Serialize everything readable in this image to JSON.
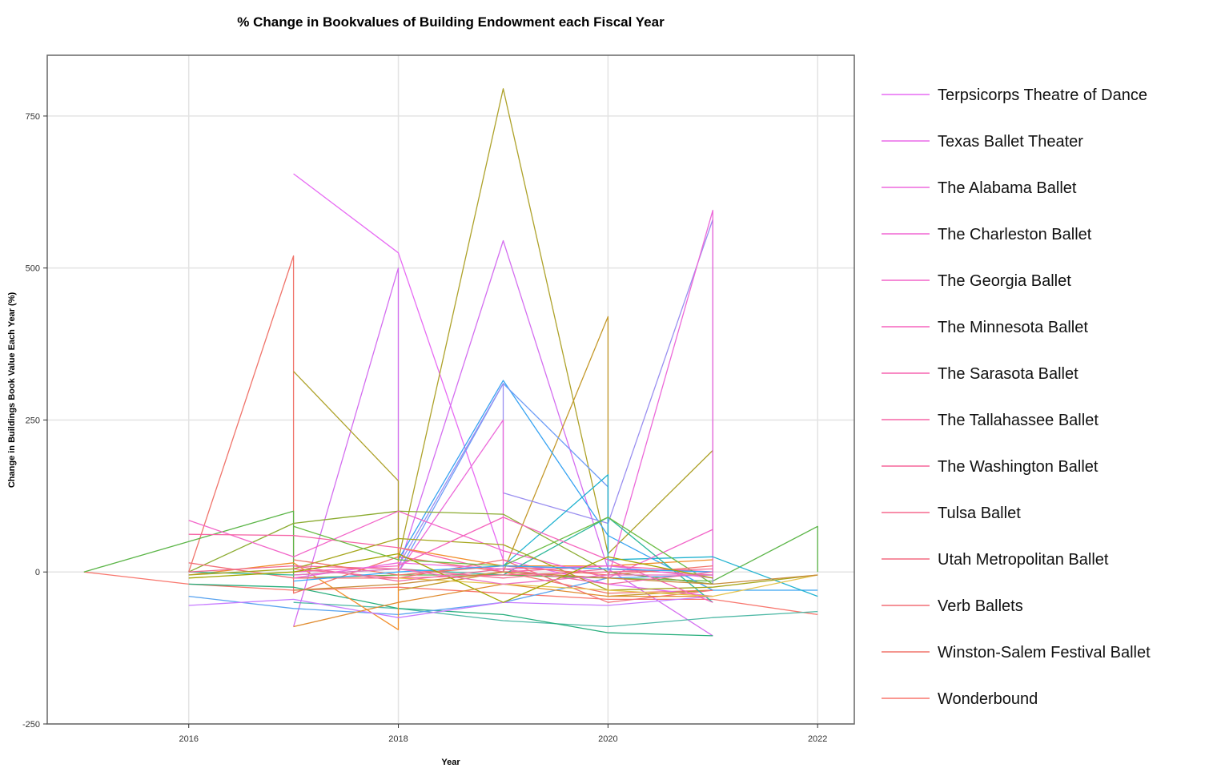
{
  "chart_data": {
    "type": "line",
    "title": "% Change in Bookvalues of Building Endowment each Fiscal Year",
    "xlabel": "Year",
    "ylabel": "Change in Buildings Book Value Each Year (%)",
    "xlim": [
      2014.65,
      2022.35
    ],
    "ylim": [
      -250,
      850
    ],
    "x_ticks": [
      2016,
      2018,
      2020,
      2022
    ],
    "y_ticks": [
      -250,
      0,
      250,
      500,
      750
    ],
    "grid": true,
    "legend_position": "right",
    "legend": [
      {
        "name": "Terpsicorps Theatre of Dance",
        "color": "#e76bf3"
      },
      {
        "name": "Texas Ballet Theater",
        "color": "#ea6ae8"
      },
      {
        "name": "The Alabama Ballet",
        "color": "#ed68de"
      },
      {
        "name": "The Charleston Ballet",
        "color": "#f066d3"
      },
      {
        "name": "The Georgia Ballet",
        "color": "#f264c8"
      },
      {
        "name": "The Minnesota Ballet",
        "color": "#f564bd"
      },
      {
        "name": "The Sarasota Ballet",
        "color": "#f564b1"
      },
      {
        "name": "The Tallahassee Ballet",
        "color": "#f665a6"
      },
      {
        "name": "The Washington Ballet",
        "color": "#f6669a"
      },
      {
        "name": "Tulsa Ballet",
        "color": "#f5698e"
      },
      {
        "name": "Utah Metropolitan Ballet",
        "color": "#f46c82"
      },
      {
        "name": "Verb Ballets",
        "color": "#f26f76"
      },
      {
        "name": "Winston-Salem Festival Ballet",
        "color": "#f0736a"
      },
      {
        "name": "Wonderbound",
        "color": "#f8766d"
      }
    ],
    "series": [
      {
        "color": "#f8766d",
        "points": [
          [
            2015,
            0
          ],
          [
            2016,
            -20
          ],
          [
            2017,
            -30
          ],
          [
            2018,
            -25
          ],
          [
            2019,
            -35
          ],
          [
            2020,
            -45
          ],
          [
            2021,
            -45
          ],
          [
            2022,
            -70
          ]
        ]
      },
      {
        "color": "#f0736a",
        "points": [
          [
            2016,
            0
          ],
          [
            2017,
            520
          ],
          [
            2017,
            -35
          ],
          [
            2018,
            25
          ],
          [
            2019,
            0
          ],
          [
            2020,
            -35
          ],
          [
            2021,
            -30
          ]
        ]
      },
      {
        "color": "#5bb547",
        "points": [
          [
            2015,
            0
          ],
          [
            2016,
            50
          ],
          [
            2017,
            100
          ],
          [
            2017,
            -10
          ],
          [
            2018,
            -5
          ],
          [
            2019,
            -5
          ],
          [
            2020,
            -10
          ],
          [
            2021,
            -15
          ],
          [
            2022,
            75
          ],
          [
            2022,
            0
          ]
        ]
      },
      {
        "color": "#e76bf3",
        "points": [
          [
            2017,
            655
          ],
          [
            2018,
            525
          ],
          [
            2019,
            20
          ],
          [
            2020,
            -20
          ],
          [
            2021,
            -40
          ]
        ]
      },
      {
        "color": "#d46ef0",
        "points": [
          [
            2017,
            -90
          ],
          [
            2018,
            500
          ],
          [
            2018,
            5
          ],
          [
            2019,
            545
          ],
          [
            2020,
            5
          ],
          [
            2021,
            -105
          ]
        ]
      },
      {
        "color": "#aea22a",
        "points": [
          [
            2017,
            330
          ],
          [
            2018,
            150
          ],
          [
            2018,
            20
          ],
          [
            2019,
            795
          ],
          [
            2020,
            30
          ],
          [
            2021,
            200
          ],
          [
            2021,
            -20
          ]
        ]
      },
      {
        "color": "#c4992b",
        "points": [
          [
            2018,
            -30
          ],
          [
            2019,
            0
          ],
          [
            2020,
            420
          ],
          [
            2020,
            -40
          ],
          [
            2021,
            -30
          ]
        ]
      },
      {
        "color": "#37a3f2",
        "points": [
          [
            2018,
            20
          ],
          [
            2019,
            315
          ],
          [
            2020,
            60
          ],
          [
            2021,
            -30
          ],
          [
            2022,
            -30
          ]
        ]
      },
      {
        "color": "#6f9df7",
        "points": [
          [
            2018,
            0
          ],
          [
            2019,
            310
          ],
          [
            2020,
            140
          ],
          [
            2020,
            0
          ],
          [
            2021,
            -20
          ]
        ]
      },
      {
        "color": "#9a8ff0",
        "points": [
          [
            2018,
            10
          ],
          [
            2019,
            310
          ],
          [
            2019,
            130
          ],
          [
            2020,
            80
          ],
          [
            2021,
            580
          ],
          [
            2021,
            -20
          ]
        ]
      },
      {
        "color": "#ec69d9",
        "points": [
          [
            2018,
            0
          ],
          [
            2019,
            250
          ],
          [
            2019,
            0
          ],
          [
            2020,
            -10
          ],
          [
            2021,
            595
          ],
          [
            2021,
            -10
          ]
        ]
      },
      {
        "color": "#1fb2d0",
        "points": [
          [
            2019,
            10
          ],
          [
            2020,
            160
          ],
          [
            2020,
            20
          ],
          [
            2021,
            25
          ],
          [
            2022,
            -40
          ]
        ]
      },
      {
        "color": "#4fb9a6",
        "points": [
          [
            2017,
            -50
          ],
          [
            2018,
            -60
          ],
          [
            2019,
            -80
          ],
          [
            2020,
            -90
          ],
          [
            2021,
            -75
          ],
          [
            2022,
            -65
          ]
        ]
      },
      {
        "color": "#27ae7c",
        "points": [
          [
            2016,
            -20
          ],
          [
            2017,
            -25
          ],
          [
            2018,
            -60
          ],
          [
            2019,
            -70
          ],
          [
            2020,
            -100
          ],
          [
            2021,
            -105
          ]
        ]
      },
      {
        "color": "#8bab30",
        "points": [
          [
            2016,
            0
          ],
          [
            2017,
            80
          ],
          [
            2018,
            100
          ],
          [
            2019,
            95
          ],
          [
            2020,
            0
          ],
          [
            2021,
            -20
          ]
        ]
      },
      {
        "color": "#59a3f0",
        "points": [
          [
            2016,
            -40
          ],
          [
            2017,
            -60
          ],
          [
            2018,
            -70
          ],
          [
            2019,
            -50
          ],
          [
            2020,
            -10
          ],
          [
            2021,
            -5
          ]
        ]
      },
      {
        "color": "#f28e2b",
        "points": [
          [
            2016,
            -5
          ],
          [
            2017,
            15
          ],
          [
            2018,
            -95
          ],
          [
            2018,
            40
          ],
          [
            2019,
            10
          ],
          [
            2020,
            10
          ],
          [
            2021,
            20
          ]
        ]
      },
      {
        "color": "#f264c8",
        "points": [
          [
            2016,
            85
          ],
          [
            2017,
            25
          ],
          [
            2018,
            100
          ],
          [
            2019,
            35
          ],
          [
            2020,
            -10
          ],
          [
            2021,
            70
          ]
        ]
      },
      {
        "color": "#f665a6",
        "points": [
          [
            2016,
            62
          ],
          [
            2017,
            60
          ],
          [
            2018,
            40
          ],
          [
            2019,
            0
          ],
          [
            2020,
            10
          ],
          [
            2021,
            0
          ]
        ]
      },
      {
        "color": "#f26f76",
        "points": [
          [
            2016,
            15
          ],
          [
            2017,
            -10
          ],
          [
            2018,
            -10
          ],
          [
            2019,
            20
          ],
          [
            2020,
            -50
          ],
          [
            2021,
            -30
          ]
        ]
      },
      {
        "color": "#2fb89a",
        "points": [
          [
            2016,
            0
          ],
          [
            2017,
            -5
          ],
          [
            2018,
            5
          ],
          [
            2019,
            -5
          ],
          [
            2020,
            90
          ],
          [
            2021,
            -50
          ]
        ]
      },
      {
        "color": "#c77cff",
        "points": [
          [
            2016,
            -55
          ],
          [
            2017,
            -45
          ],
          [
            2018,
            -75
          ],
          [
            2019,
            -50
          ],
          [
            2020,
            -55
          ],
          [
            2021,
            -40
          ]
        ]
      },
      {
        "color": "#f06992",
        "points": [
          [
            2016,
            0
          ],
          [
            2017,
            10
          ],
          [
            2018,
            5
          ],
          [
            2019,
            -10
          ],
          [
            2020,
            5
          ],
          [
            2021,
            -5
          ]
        ]
      },
      {
        "color": "#a6a61c",
        "points": [
          [
            2016,
            -5
          ],
          [
            2017,
            5
          ],
          [
            2018,
            55
          ],
          [
            2019,
            45
          ],
          [
            2020,
            -30
          ],
          [
            2021,
            -25
          ],
          [
            2022,
            -5
          ]
        ]
      },
      {
        "color": "#e08b2f",
        "points": [
          [
            2017,
            -90
          ],
          [
            2018,
            -50
          ],
          [
            2019,
            -20
          ],
          [
            2020,
            -40
          ],
          [
            2021,
            -40
          ]
        ]
      },
      {
        "color": "#6bbd45",
        "points": [
          [
            2017,
            75
          ],
          [
            2018,
            20
          ],
          [
            2019,
            10
          ],
          [
            2020,
            90
          ],
          [
            2021,
            -20
          ]
        ]
      },
      {
        "color": "#f564bd",
        "points": [
          [
            2017,
            0
          ],
          [
            2018,
            10
          ],
          [
            2019,
            90
          ],
          [
            2020,
            20
          ],
          [
            2021,
            -50
          ]
        ]
      },
      {
        "color": "#f5698e",
        "points": [
          [
            2017,
            5
          ],
          [
            2018,
            -10
          ],
          [
            2019,
            -5
          ],
          [
            2020,
            0
          ],
          [
            2021,
            5
          ]
        ]
      },
      {
        "color": "#ed68de",
        "points": [
          [
            2017,
            -10
          ],
          [
            2018,
            15
          ],
          [
            2019,
            5
          ],
          [
            2020,
            10
          ],
          [
            2021,
            -10
          ]
        ]
      },
      {
        "color": "#f0736a",
        "points": [
          [
            2017,
            20
          ],
          [
            2018,
            -5
          ],
          [
            2019,
            10
          ],
          [
            2020,
            -5
          ],
          [
            2021,
            10
          ]
        ]
      },
      {
        "color": "#36aaf7",
        "points": [
          [
            2017,
            -15
          ],
          [
            2018,
            0
          ],
          [
            2019,
            10
          ],
          [
            2020,
            5
          ],
          [
            2021,
            0
          ]
        ]
      },
      {
        "color": "#e5c24a",
        "points": [
          [
            2018,
            -10
          ],
          [
            2019,
            -20
          ],
          [
            2020,
            -30
          ],
          [
            2021,
            -40
          ],
          [
            2022,
            -5
          ]
        ]
      },
      {
        "color": "#c88c3a",
        "points": [
          [
            2017,
            -30
          ],
          [
            2018,
            -20
          ],
          [
            2019,
            0
          ],
          [
            2020,
            -10
          ],
          [
            2021,
            -20
          ],
          [
            2022,
            -5
          ]
        ]
      },
      {
        "color": "#ef6aa0",
        "points": [
          [
            2017,
            10
          ],
          [
            2018,
            -15
          ],
          [
            2019,
            5
          ],
          [
            2020,
            -20
          ],
          [
            2021,
            0
          ]
        ]
      },
      {
        "color": "#a3a500",
        "points": [
          [
            2016,
            -10
          ],
          [
            2017,
            0
          ],
          [
            2018,
            30
          ],
          [
            2019,
            -50
          ],
          [
            2020,
            25
          ],
          [
            2021,
            -10
          ]
        ]
      },
      {
        "color": "#eb71c0",
        "points": [
          [
            2017,
            -5
          ],
          [
            2018,
            5
          ],
          [
            2019,
            -20
          ],
          [
            2020,
            -5
          ],
          [
            2021,
            -5
          ]
        ]
      }
    ]
  }
}
